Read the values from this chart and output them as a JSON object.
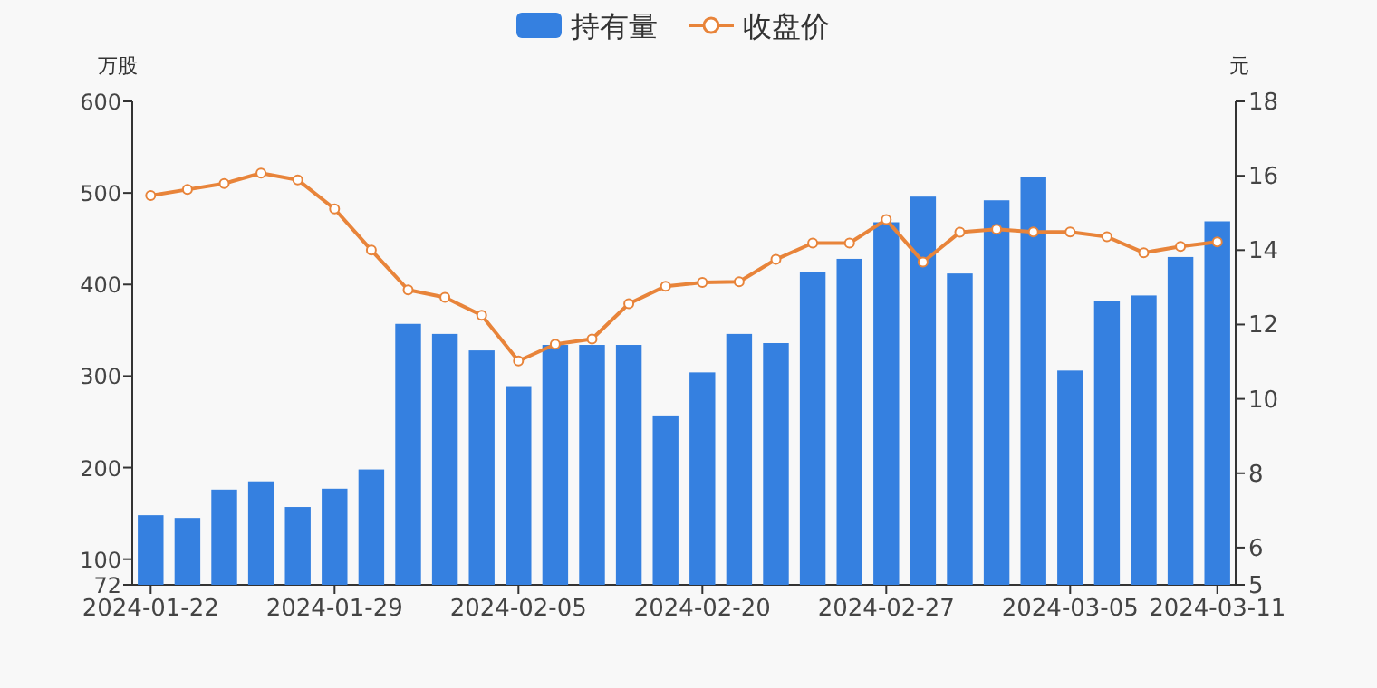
{
  "chart_data": {
    "type": "bar",
    "legend": "top",
    "ylabel": "万股",
    "y2label": "元",
    "categories": [
      "2024-01-22",
      null,
      null,
      null,
      null,
      "2024-01-29",
      null,
      null,
      null,
      null,
      "2024-02-05",
      null,
      null,
      null,
      null,
      "2024-02-20",
      null,
      null,
      null,
      null,
      "2024-02-27",
      null,
      null,
      null,
      null,
      "2024-03-05",
      null,
      null,
      null,
      "2024-03-11"
    ],
    "ylim": [
      72,
      600
    ],
    "yticks": [
      72,
      100,
      200,
      300,
      400,
      500,
      600
    ],
    "y2lim": [
      5,
      18
    ],
    "y2ticks": [
      5,
      6,
      8,
      10,
      12,
      14,
      16,
      18
    ],
    "series": [
      {
        "name": "持有量",
        "color": "#3580e0",
        "values": [
          148,
          145,
          176,
          185,
          157,
          177,
          198,
          357,
          346,
          328,
          289,
          334,
          334,
          334,
          257,
          304,
          346,
          336,
          414,
          428,
          468,
          496,
          412,
          492,
          517,
          306,
          382,
          388,
          430,
          469
        ]
      },
      {
        "name": "收盘价",
        "type": "line",
        "axis": "y2",
        "marker": "circle",
        "color": "#e8843a",
        "values": [
          15.47,
          15.63,
          15.79,
          16.07,
          15.89,
          15.11,
          14.0,
          12.93,
          12.73,
          12.25,
          11.02,
          11.47,
          11.61,
          12.56,
          13.03,
          13.13,
          13.15,
          13.75,
          14.19,
          14.19,
          14.82,
          13.68,
          14.48,
          14.56,
          14.49,
          14.49,
          14.36,
          13.93,
          14.1,
          14.22
        ]
      }
    ]
  }
}
